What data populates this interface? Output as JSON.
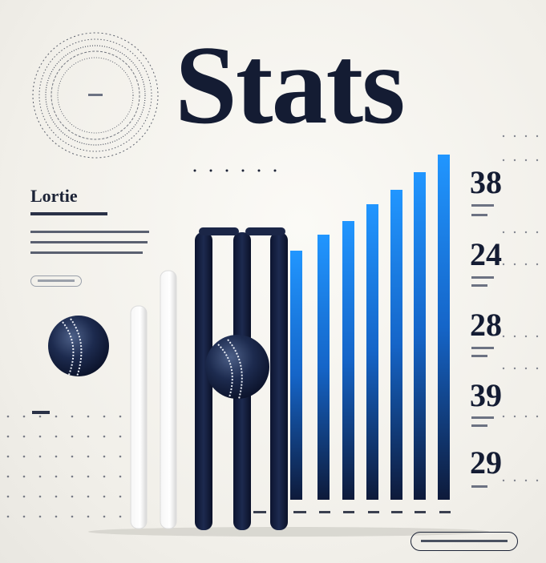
{
  "header": {
    "title": "Stats"
  },
  "sidebar": {
    "heading": "Lortie"
  },
  "stat_values": [
    "38",
    "24",
    "28",
    "39",
    "29"
  ],
  "colors": {
    "navy": "#141c33",
    "accent_blue": "#1f8fff",
    "background": "#f3f1ec"
  },
  "icons": {
    "ball": "cricket-ball-icon",
    "stumps": "cricket-stumps-icon",
    "target": "concentric-circles-icon"
  }
}
